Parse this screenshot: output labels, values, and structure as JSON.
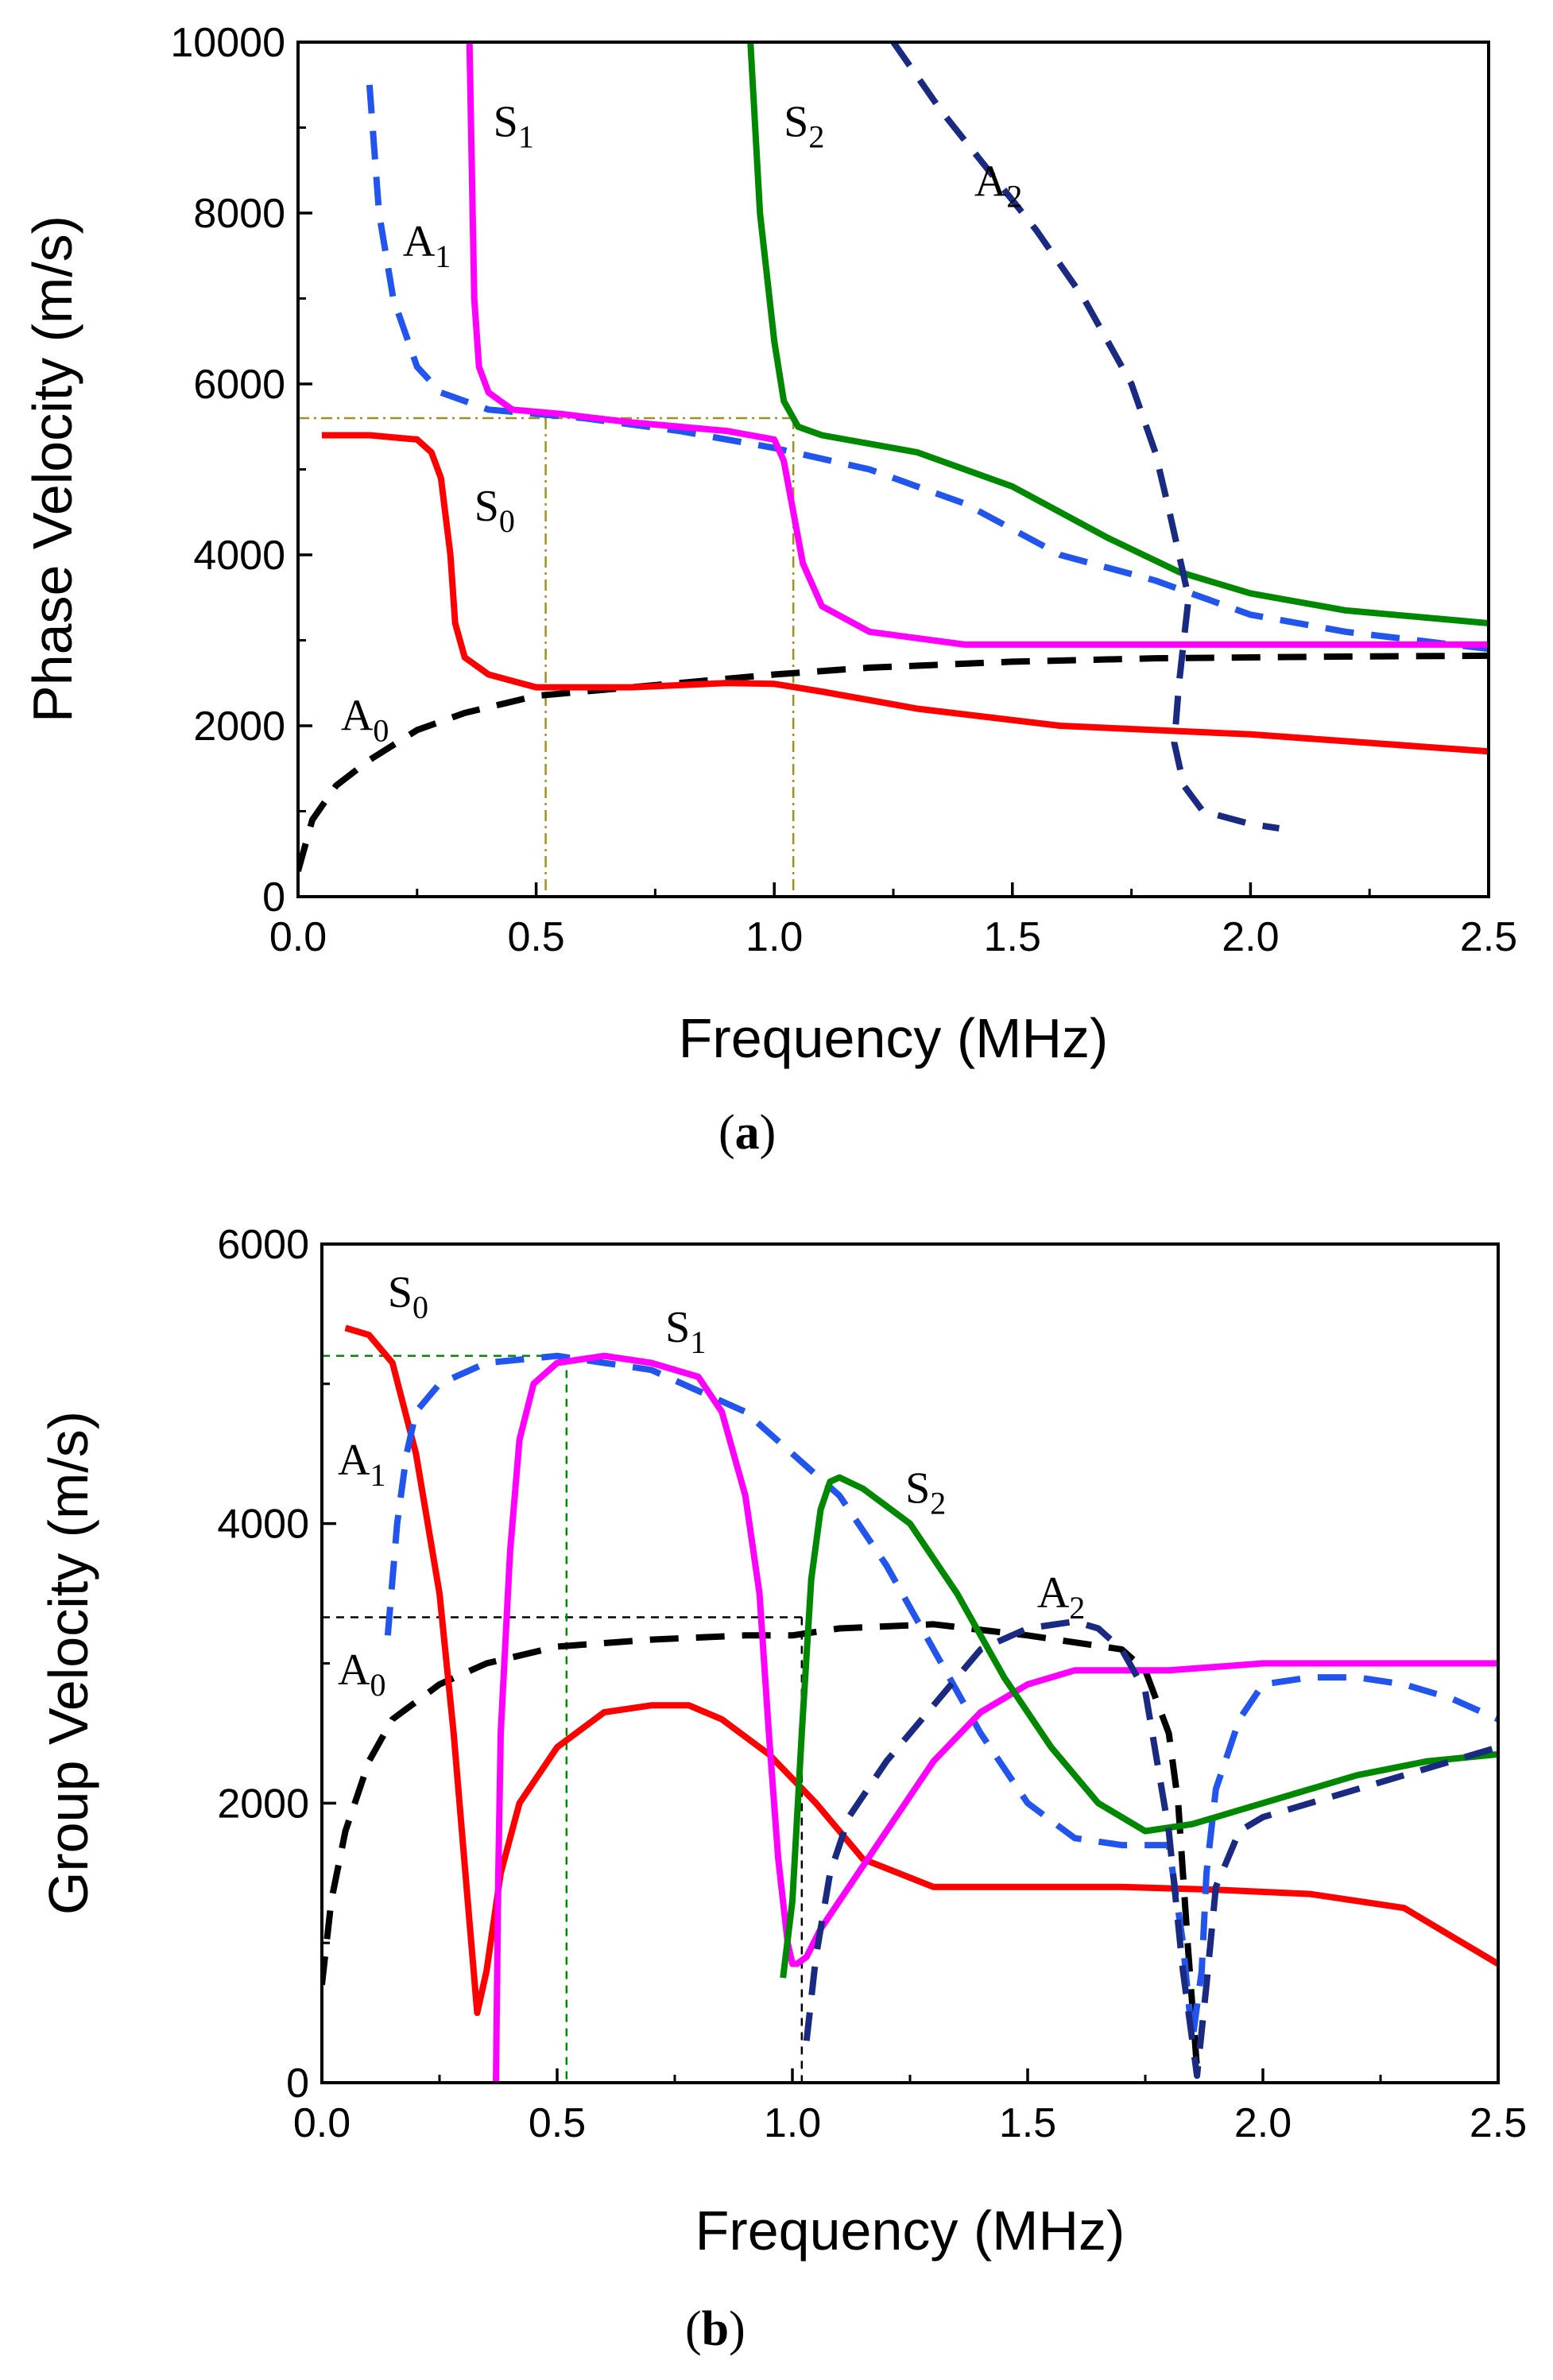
{
  "chart_data": [
    {
      "type": "line",
      "panel_label": "a",
      "xlabel": "Frequency (MHz)",
      "ylabel": "Phase Velocity (m/s)",
      "xlim": [
        0,
        2.5
      ],
      "ylim": [
        0,
        10000
      ],
      "xticks": [
        "0.0",
        "0.5",
        "1.0",
        "1.5",
        "2.0",
        "2.5"
      ],
      "yticks": [
        "0",
        "2000",
        "4000",
        "6000",
        "8000",
        "10000"
      ],
      "series": [
        {
          "name": "A0",
          "color": "#000000",
          "dashed": true,
          "x": [
            0.0,
            0.03,
            0.08,
            0.15,
            0.25,
            0.35,
            0.5,
            0.7,
            0.9,
            1.0,
            1.2,
            1.5,
            1.8,
            2.2,
            2.5
          ],
          "y": [
            300,
            900,
            1300,
            1600,
            1950,
            2150,
            2350,
            2450,
            2550,
            2600,
            2680,
            2750,
            2790,
            2810,
            2820
          ]
        },
        {
          "name": "S0",
          "color": "#ff0000",
          "dashed": false,
          "x": [
            0.05,
            0.15,
            0.25,
            0.28,
            0.3,
            0.32,
            0.33,
            0.35,
            0.4,
            0.5,
            0.7,
            0.9,
            1.0,
            1.1,
            1.3,
            1.6,
            2.0,
            2.5
          ],
          "y": [
            5400,
            5400,
            5350,
            5200,
            4900,
            4000,
            3200,
            2800,
            2600,
            2450,
            2450,
            2500,
            2490,
            2400,
            2200,
            2000,
            1900,
            1700
          ]
        },
        {
          "name": "A1",
          "color": "#2255ee",
          "dashed": true,
          "x": [
            0.15,
            0.17,
            0.2,
            0.25,
            0.3,
            0.4,
            0.6,
            0.8,
            1.0,
            1.2,
            1.4,
            1.6,
            1.8,
            2.0,
            2.2,
            2.5
          ],
          "y": [
            9500,
            8000,
            7000,
            6200,
            5900,
            5700,
            5600,
            5450,
            5250,
            5000,
            4600,
            4000,
            3700,
            3300,
            3100,
            2900
          ]
        },
        {
          "name": "S1",
          "color": "#ff00ff",
          "dashed": false,
          "x": [
            0.36,
            0.365,
            0.37,
            0.38,
            0.4,
            0.45,
            0.55,
            0.7,
            0.9,
            1.0,
            1.02,
            1.04,
            1.06,
            1.1,
            1.2,
            1.4,
            1.7,
            2.0,
            2.5
          ],
          "y": [
            10000,
            8500,
            7000,
            6200,
            5900,
            5700,
            5650,
            5550,
            5450,
            5350,
            5100,
            4500,
            3900,
            3400,
            3100,
            2950,
            2950,
            2950,
            2950
          ]
        },
        {
          "name": "S2",
          "color": "#008800",
          "dashed": false,
          "x": [
            0.95,
            0.97,
            1.0,
            1.02,
            1.05,
            1.1,
            1.3,
            1.5,
            1.7,
            1.85,
            2.0,
            2.2,
            2.5
          ],
          "y": [
            10000,
            8000,
            6500,
            5800,
            5500,
            5400,
            5200,
            4800,
            4200,
            3800,
            3550,
            3350,
            3200
          ]
        },
        {
          "name": "A2",
          "color": "#1a2a80",
          "dashed": true,
          "x": [
            1.25,
            1.35,
            1.45,
            1.55,
            1.65,
            1.75,
            1.8,
            1.83,
            1.85,
            1.87,
            1.86,
            1.85,
            1.84,
            1.86,
            1.9,
            2.0,
            2.06
          ],
          "y": [
            10000,
            9200,
            8500,
            7800,
            7000,
            6000,
            5200,
            4500,
            4000,
            3500,
            3000,
            2500,
            1800,
            1300,
            1000,
            850,
            800
          ]
        }
      ],
      "reference_lines": {
        "horizontal": [
          5600
        ],
        "vertical": [
          0.52,
          1.04
        ]
      },
      "annotations": [
        {
          "base": "S",
          "sub": "1",
          "x": 0.41,
          "y": 8900
        },
        {
          "base": "A",
          "sub": "1",
          "x": 0.22,
          "y": 7500
        },
        {
          "base": "S",
          "sub": "2",
          "x": 1.02,
          "y": 8900
        },
        {
          "base": "A",
          "sub": "2",
          "x": 1.42,
          "y": 8200
        },
        {
          "base": "S",
          "sub": "0",
          "x": 0.37,
          "y": 4400
        },
        {
          "base": "A",
          "sub": "0",
          "x": 0.09,
          "y": 1950
        }
      ]
    },
    {
      "type": "line",
      "panel_label": "b",
      "xlabel": "Frequency (MHz)",
      "ylabel": "Group Velocity (m/s)",
      "xlim": [
        0,
        2.5
      ],
      "ylim": [
        0,
        6000
      ],
      "xticks": [
        "0.0",
        "0.5",
        "1.0",
        "1.5",
        "2.0",
        "2.5"
      ],
      "yticks": [
        "0",
        "2000",
        "4000",
        "6000"
      ],
      "series": [
        {
          "name": "A0",
          "color": "#000000",
          "dashed": true,
          "x": [
            0.0,
            0.02,
            0.05,
            0.1,
            0.15,
            0.25,
            0.35,
            0.5,
            0.7,
            0.9,
            1.0,
            1.1,
            1.3,
            1.5,
            1.7,
            1.75,
            1.8,
            1.82,
            1.84,
            1.86
          ],
          "y": [
            700,
            1300,
            1800,
            2300,
            2600,
            2850,
            3000,
            3120,
            3170,
            3200,
            3200,
            3250,
            3280,
            3200,
            3100,
            2950,
            2500,
            2000,
            1000,
            100
          ]
        },
        {
          "name": "S0",
          "color": "#ff0000",
          "dashed": false,
          "x": [
            0.05,
            0.1,
            0.15,
            0.2,
            0.25,
            0.28,
            0.31,
            0.33,
            0.35,
            0.38,
            0.42,
            0.5,
            0.6,
            0.7,
            0.78,
            0.85,
            0.95,
            1.05,
            1.15,
            1.3,
            1.5,
            1.7,
            1.9,
            2.1,
            2.3,
            2.4,
            2.5
          ],
          "y": [
            5400,
            5350,
            5150,
            4500,
            3500,
            2500,
            1300,
            500,
            800,
            1500,
            2000,
            2400,
            2650,
            2700,
            2700,
            2600,
            2350,
            2000,
            1600,
            1400,
            1400,
            1400,
            1380,
            1350,
            1250,
            1050,
            850
          ]
        },
        {
          "name": "A1",
          "color": "#2255ee",
          "dashed": true,
          "x": [
            0.14,
            0.16,
            0.18,
            0.2,
            0.25,
            0.35,
            0.5,
            0.7,
            0.9,
            1.0,
            1.1,
            1.2,
            1.3,
            1.4,
            1.5,
            1.6,
            1.7,
            1.75,
            1.8,
            1.83,
            1.85,
            1.87,
            1.88,
            1.9,
            1.95,
            2.0,
            2.1,
            2.2,
            2.3,
            2.4,
            2.5
          ],
          "y": [
            3200,
            4000,
            4500,
            4800,
            5000,
            5150,
            5200,
            5100,
            4800,
            4500,
            4200,
            3700,
            3100,
            2500,
            2000,
            1750,
            1700,
            1700,
            1700,
            1000,
            300,
            800,
            1500,
            2100,
            2600,
            2850,
            2900,
            2900,
            2850,
            2750,
            2600
          ]
        },
        {
          "name": "S1",
          "color": "#ff00ff",
          "dashed": false,
          "x": [
            0.37,
            0.375,
            0.38,
            0.4,
            0.42,
            0.45,
            0.5,
            0.6,
            0.7,
            0.8,
            0.85,
            0.9,
            0.93,
            0.95,
            0.97,
            0.99,
            1.0,
            1.01,
            1.03,
            1.06,
            1.1,
            1.2,
            1.3,
            1.4,
            1.5,
            1.6,
            1.7,
            1.8,
            2.0,
            2.2,
            2.5
          ],
          "y": [
            0,
            1500,
            2500,
            3800,
            4600,
            5000,
            5150,
            5200,
            5150,
            5050,
            4800,
            4200,
            3500,
            2500,
            1600,
            1000,
            850,
            850,
            900,
            1100,
            1300,
            1800,
            2300,
            2650,
            2850,
            2950,
            2950,
            2950,
            3000,
            3000,
            3000
          ]
        },
        {
          "name": "S2",
          "color": "#008800",
          "dashed": false,
          "x": [
            0.98,
            1.0,
            1.02,
            1.04,
            1.06,
            1.08,
            1.1,
            1.15,
            1.25,
            1.35,
            1.45,
            1.55,
            1.65,
            1.75,
            1.85,
            1.95,
            2.05,
            2.2,
            2.35,
            2.5
          ],
          "y": [
            750,
            1300,
            2500,
            3600,
            4100,
            4300,
            4330,
            4250,
            4000,
            3500,
            2900,
            2400,
            2000,
            1800,
            1850,
            1950,
            2050,
            2200,
            2300,
            2350
          ]
        },
        {
          "name": "A2",
          "color": "#1a2a80",
          "dashed": true,
          "x": [
            1.03,
            1.05,
            1.08,
            1.12,
            1.2,
            1.3,
            1.4,
            1.5,
            1.6,
            1.65,
            1.7,
            1.75,
            1.8,
            1.83,
            1.86,
            1.88,
            1.9,
            1.95,
            2.0,
            2.1,
            2.2,
            2.3,
            2.4,
            2.5
          ],
          "y": [
            300,
            900,
            1500,
            1900,
            2300,
            2700,
            3100,
            3250,
            3300,
            3250,
            3100,
            2800,
            1800,
            800,
            50,
            700,
            1400,
            1800,
            1900,
            2000,
            2100,
            2200,
            2300,
            2400
          ]
        }
      ],
      "reference_lines": {
        "horizontal": [
          {
            "y": 5200,
            "color": "#008800"
          },
          {
            "y": 3330,
            "color": "#000000"
          }
        ],
        "vertical": [
          {
            "x": 0.52,
            "color": "#008800"
          },
          {
            "x": 1.02,
            "color": "#000000"
          }
        ]
      },
      "annotations": [
        {
          "base": "S",
          "sub": "0",
          "x": 0.14,
          "y": 5550
        },
        {
          "base": "S",
          "sub": "1",
          "x": 0.73,
          "y": 5300
        },
        {
          "base": "A",
          "sub": "1",
          "x": 0.0,
          "y": 4350
        },
        {
          "base": "S",
          "sub": "2",
          "x": 1.24,
          "y": 4150
        },
        {
          "base": "A",
          "sub": "2",
          "x": 1.52,
          "y": 3400
        },
        {
          "base": "A",
          "sub": "0",
          "x": 0.0,
          "y": 2850
        }
      ]
    }
  ]
}
